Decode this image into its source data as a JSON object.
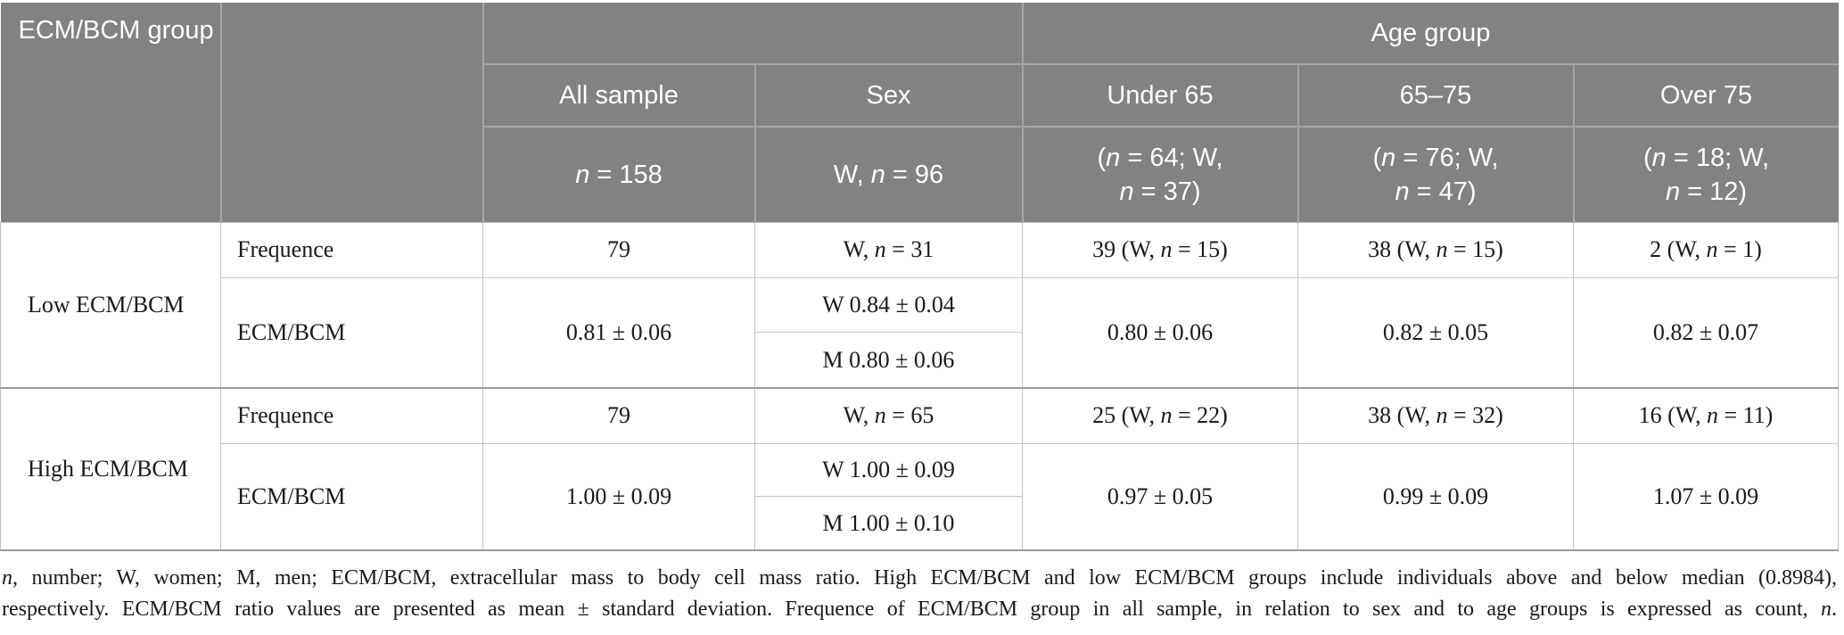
{
  "colors": {
    "page_bg": "#ffffff",
    "header_bg": "#808382",
    "header_text": "#ffffff",
    "header_border": "#a3a6a5",
    "body_text": "#1a1a1a",
    "border_light": "#c3c3c3",
    "border_dark": "#9b9b9b"
  },
  "header": {
    "group_col_title": "ECM/BCM group",
    "age_group_label": "Age group",
    "columns": [
      "All sample",
      "Sex",
      "Under 65",
      "65–75",
      "Over 75"
    ],
    "subheaders": {
      "all_sample": [
        {
          "t": "n",
          "i": true
        },
        {
          "t": " = 158"
        }
      ],
      "sex": [
        {
          "t": "W, "
        },
        {
          "t": "n",
          "i": true
        },
        {
          "t": " = 96"
        }
      ],
      "under_65": [
        {
          "t": "("
        },
        {
          "t": "n",
          "i": true
        },
        {
          "t": " = 64; W,"
        },
        {
          "br": true
        },
        {
          "t": "n",
          "i": true
        },
        {
          "t": " = 37)"
        }
      ],
      "age_65_75": [
        {
          "t": "("
        },
        {
          "t": "n",
          "i": true
        },
        {
          "t": " = 76; W,"
        },
        {
          "br": true
        },
        {
          "t": "n",
          "i": true
        },
        {
          "t": " = 47)"
        }
      ],
      "over_75": [
        {
          "t": "("
        },
        {
          "t": "n",
          "i": true
        },
        {
          "t": " = 18; W,"
        },
        {
          "br": true
        },
        {
          "t": "n",
          "i": true
        },
        {
          "t": " = 12)"
        }
      ]
    }
  },
  "body": {
    "row_labels": {
      "frequence": "Frequence",
      "ecm_bcm": "ECM/BCM"
    },
    "groups": [
      {
        "label": "Low ECM/BCM",
        "frequence": {
          "all_sample": "79",
          "sex": [
            {
              "t": "W, "
            },
            {
              "t": "n",
              "i": true
            },
            {
              "t": " = 31"
            }
          ],
          "under_65": [
            {
              "t": "39 (W, "
            },
            {
              "t": "n",
              "i": true
            },
            {
              "t": " = 15)"
            }
          ],
          "age_65_75": [
            {
              "t": "38 (W, "
            },
            {
              "t": "n",
              "i": true
            },
            {
              "t": " = 15)"
            }
          ],
          "over_75": [
            {
              "t": "2 (W, "
            },
            {
              "t": "n",
              "i": true
            },
            {
              "t": " = 1)"
            }
          ]
        },
        "ecm_bcm": {
          "all_sample": "0.81 ± 0.06",
          "sex_w": "W 0.84 ± 0.04",
          "sex_m": "M 0.80 ± 0.06",
          "under_65": "0.80 ± 0.06",
          "age_65_75": "0.82 ± 0.05",
          "over_75": "0.82 ± 0.07"
        }
      },
      {
        "label": "High ECM/BCM",
        "frequence": {
          "all_sample": "79",
          "sex": [
            {
              "t": "W, "
            },
            {
              "t": "n",
              "i": true
            },
            {
              "t": " = 65"
            }
          ],
          "under_65": [
            {
              "t": "25 (W, "
            },
            {
              "t": "n",
              "i": true
            },
            {
              "t": " = 22)"
            }
          ],
          "age_65_75": [
            {
              "t": "38 (W, "
            },
            {
              "t": "n",
              "i": true
            },
            {
              "t": " = 32)"
            }
          ],
          "over_75": [
            {
              "t": "16 (W, "
            },
            {
              "t": "n",
              "i": true
            },
            {
              "t": " = 11)"
            }
          ]
        },
        "ecm_bcm": {
          "all_sample": "1.00 ± 0.09",
          "sex_w": "W 1.00 ± 0.09",
          "sex_m": "M 1.00 ± 0.10",
          "under_65": "0.97 ± 0.05",
          "age_65_75": "0.99 ± 0.09",
          "over_75": "1.07 ± 0.09"
        }
      }
    ]
  },
  "footnote": {
    "line1": [
      {
        "t": "n",
        "i": true
      },
      {
        "t": ", number; W, women; M, men; ECM/BCM, extracellular mass to body cell mass ratio. High ECM/BCM and low ECM/BCM groups include individuals above and below median (0.8984),"
      }
    ],
    "line2": [
      {
        "t": "respectively. ECM/BCM ratio values are presented as mean ± standard deviation. Frequence of ECM/BCM group in all sample, in relation to sex and to age groups is expressed as count, "
      },
      {
        "t": "n",
        "i": true
      },
      {
        "t": "."
      }
    ]
  }
}
